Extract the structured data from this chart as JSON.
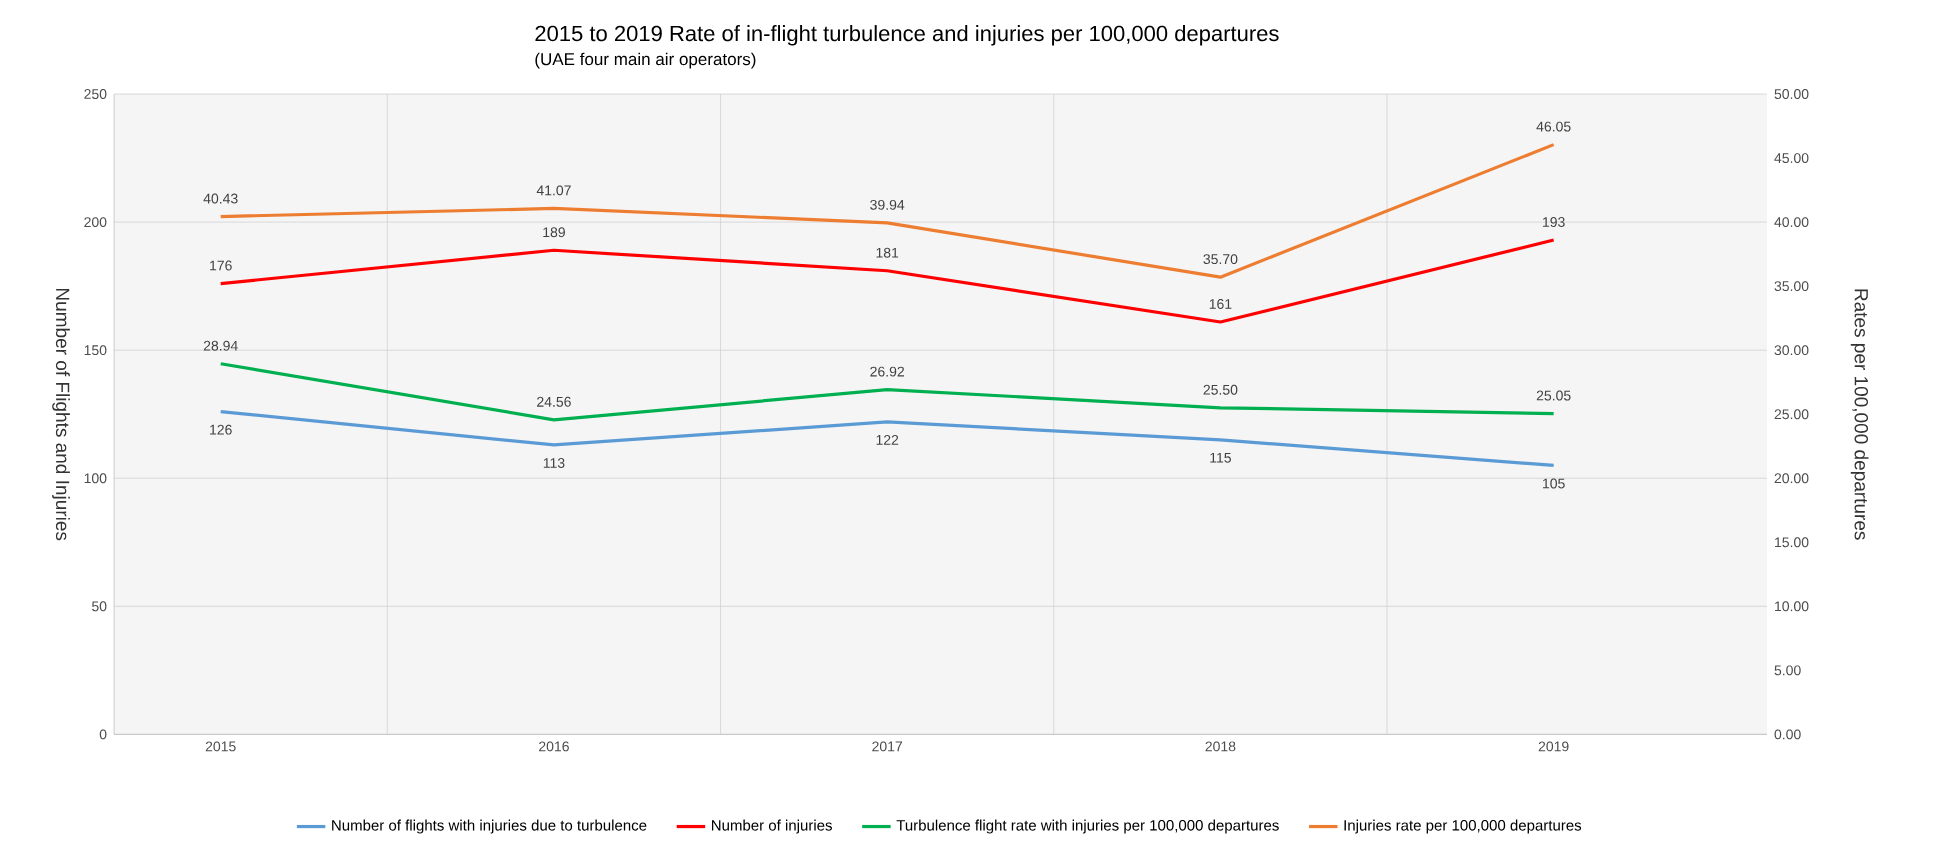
{
  "chart_data": {
    "type": "line",
    "title": "2015 to 2019 Rate of in-flight turbulence and injuries per 100,000 departures",
    "subtitle": "(UAE four main air operators)",
    "ylabel": "Number of Flights and Injuries",
    "y2label": "Rates per 100,000 departures",
    "categories": [
      "2015",
      "2016",
      "2017",
      "2018",
      "2019"
    ],
    "series": [
      {
        "name": "Number of flights with injuries due to  turbulence",
        "color": "#5b9bd5",
        "values": [
          126,
          113,
          122,
          115,
          105
        ],
        "value_labels": [
          "126",
          "113",
          "122",
          "115",
          "105"
        ]
      },
      {
        "name": "Number of injuries",
        "color": "#ff0000",
        "values": [
          176,
          189,
          181,
          161,
          193
        ],
        "value_labels": [
          "176",
          "189",
          "181",
          "161",
          "193"
        ]
      },
      {
        "name": "Turbulence flight rate with injuries per 100,000 departures",
        "color": "#00b050",
        "axis": "y2",
        "values": [
          28.94,
          24.56,
          26.92,
          25.5,
          25.05
        ],
        "value_labels": [
          "28.94",
          "24.56",
          "26.92",
          "25.50",
          "25.05"
        ]
      },
      {
        "name": "Injuries rate per 100,000 departures",
        "color": "#ed7d31",
        "axis": "y2",
        "values": [
          40.43,
          41.07,
          39.94,
          35.7,
          46.05
        ],
        "value_labels": [
          "40.43",
          "41.07",
          "39.94",
          "35.70",
          "46.05"
        ]
      }
    ],
    "ylim": [
      0,
      250
    ],
    "yticks": [
      0,
      50,
      100,
      150,
      200,
      250
    ],
    "y2lim": [
      0,
      50
    ],
    "y2ticks": [
      {
        "value": 0,
        "label": "0.00"
      },
      {
        "value": 5,
        "label": "5.00"
      },
      {
        "value": 10,
        "label": "10.00"
      },
      {
        "value": 15,
        "label": "15.00"
      },
      {
        "value": 20,
        "label": "20.00"
      },
      {
        "value": 25,
        "label": "25.00"
      },
      {
        "value": 30,
        "label": "30.00"
      },
      {
        "value": 35,
        "label": "35.00"
      },
      {
        "value": 40,
        "label": "40.00"
      },
      {
        "value": 45,
        "label": "45.00"
      },
      {
        "value": 50,
        "label": "50.00"
      }
    ],
    "grid": true,
    "legend": "bottom",
    "line_style": "solid",
    "marker": "none"
  }
}
